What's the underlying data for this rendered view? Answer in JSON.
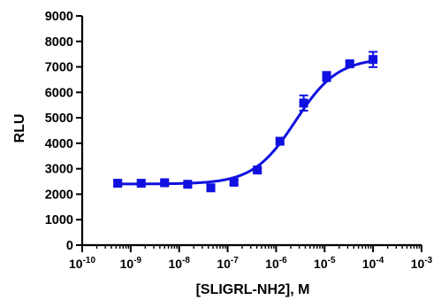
{
  "chart_data": {
    "type": "scatter",
    "title": "",
    "xlabel": "[SLIGRL-NH2], M",
    "ylabel": "RLU",
    "xscale": "log",
    "xlim": [
      1e-10,
      0.001
    ],
    "ylim": [
      0,
      9000
    ],
    "grid": false,
    "legend": "none",
    "x_tick_labels": [
      {
        "base": "10",
        "exp": "-10"
      },
      {
        "base": "10",
        "exp": "-9"
      },
      {
        "base": "10",
        "exp": "-8"
      },
      {
        "base": "10",
        "exp": "-7"
      },
      {
        "base": "10",
        "exp": "-6"
      },
      {
        "base": "10",
        "exp": "-5"
      },
      {
        "base": "10",
        "exp": "-4"
      },
      {
        "base": "10",
        "exp": "-3"
      }
    ],
    "y_tick_labels": [
      "0",
      "1000",
      "2000",
      "3000",
      "4000",
      "5000",
      "6000",
      "7000",
      "8000",
      "9000"
    ],
    "series": [
      {
        "color": "#1010e0",
        "marker": "square",
        "points": [
          {
            "x": 5.4e-10,
            "y": 2430,
            "err": 120
          },
          {
            "x": 1.65e-09,
            "y": 2430,
            "err": 80
          },
          {
            "x": 5e-09,
            "y": 2450,
            "err": 100
          },
          {
            "x": 1.5e-08,
            "y": 2390,
            "err": 80
          },
          {
            "x": 4.5e-08,
            "y": 2250,
            "err": 120
          },
          {
            "x": 1.35e-07,
            "y": 2470,
            "err": 100
          },
          {
            "x": 4.1e-07,
            "y": 2950,
            "err": 80
          },
          {
            "x": 1.2e-06,
            "y": 4080,
            "err": 100
          },
          {
            "x": 3.7e-06,
            "y": 5580,
            "err": 300
          },
          {
            "x": 1.1e-05,
            "y": 6620,
            "err": 180
          },
          {
            "x": 3.3e-05,
            "y": 7120,
            "err": 100
          },
          {
            "x": 0.0001,
            "y": 7290,
            "err": 300
          }
        ],
        "fit": {
          "type": "sigmoid",
          "bottom": 2400,
          "top": 7350,
          "logEC50": -5.6,
          "hill": 1.0
        }
      }
    ]
  }
}
